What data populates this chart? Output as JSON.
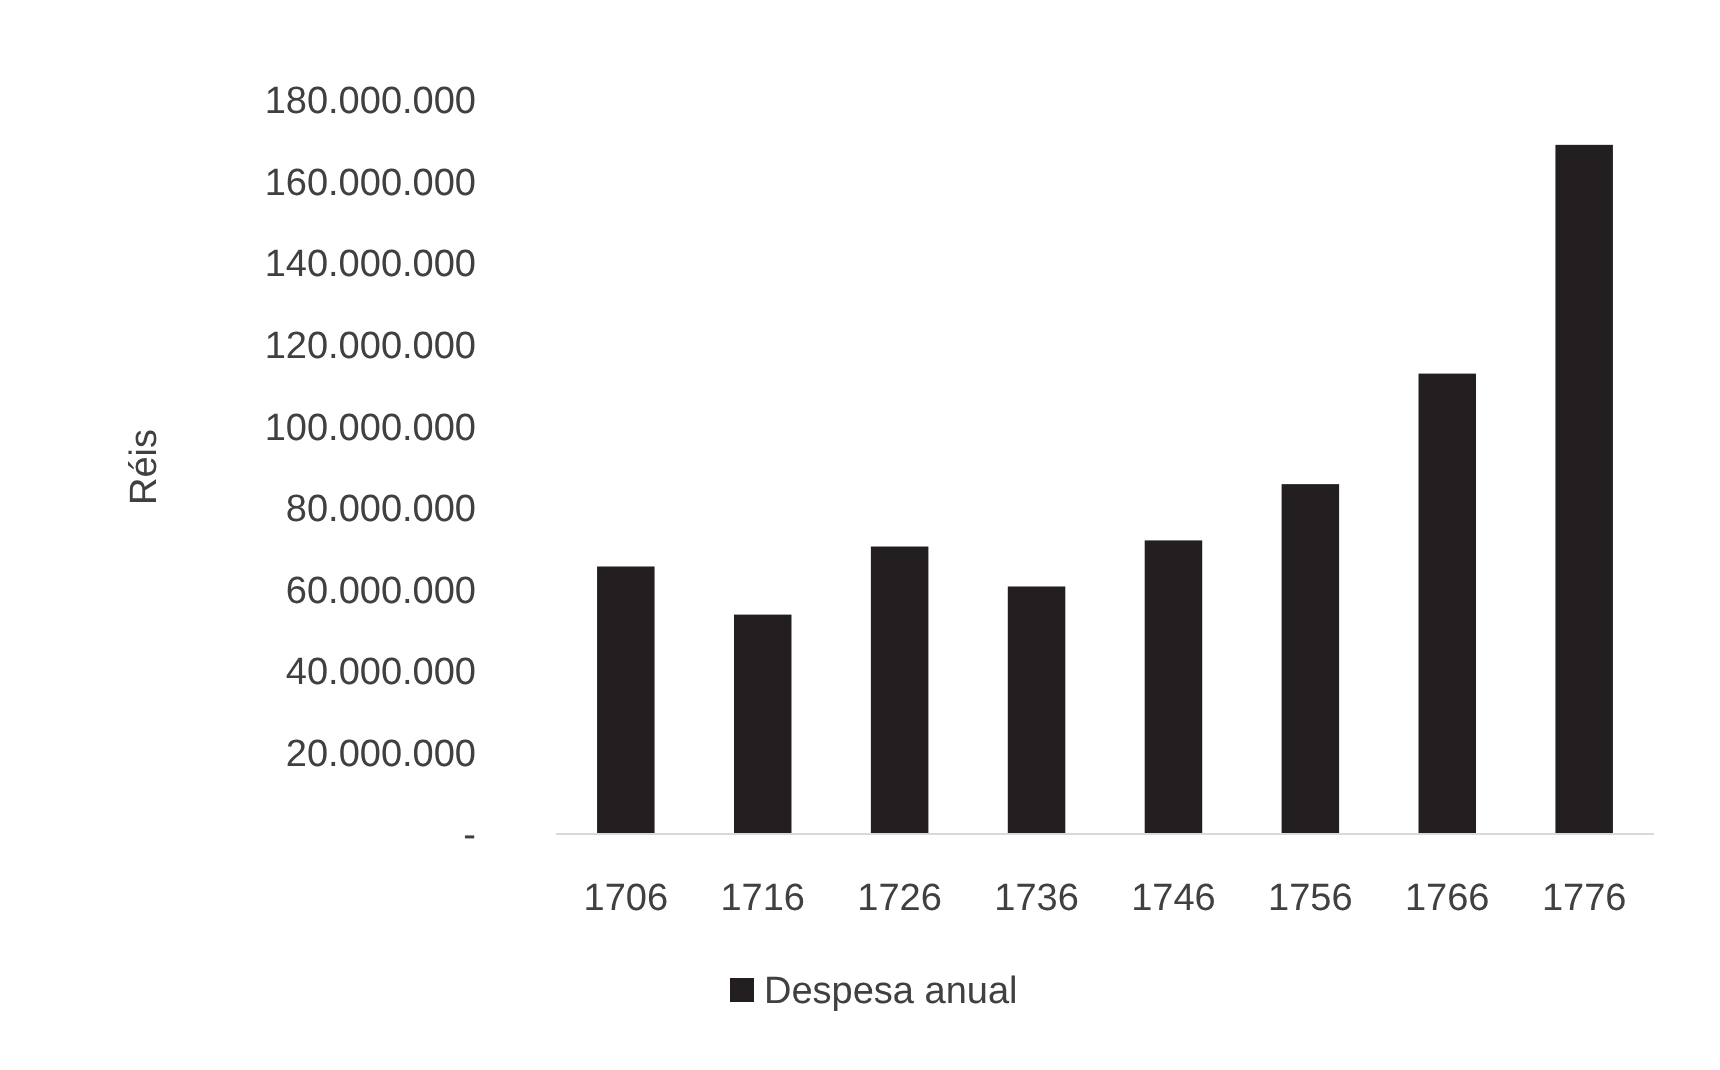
{
  "chart_data": {
    "type": "bar",
    "ylabel": "Réis",
    "categories": [
      "1706",
      "1716",
      "1726",
      "1736",
      "1746",
      "1756",
      "1766",
      "1776"
    ],
    "series": [
      {
        "name": "Despesa anual",
        "color": "#231f20",
        "values": [
          65600000,
          53800000,
          70500000,
          60700000,
          72000000,
          85800000,
          112900000,
          169000000
        ]
      }
    ],
    "ylim": [
      0,
      180000000
    ],
    "yticks": [
      {
        "value": 0,
        "label": "-"
      },
      {
        "value": 20000000,
        "label": "20.000.000"
      },
      {
        "value": 40000000,
        "label": "40.000.000"
      },
      {
        "value": 60000000,
        "label": "60.000.000"
      },
      {
        "value": 80000000,
        "label": "80.000.000"
      },
      {
        "value": 100000000,
        "label": "100.000.000"
      },
      {
        "value": 120000000,
        "label": "120.000.000"
      },
      {
        "value": 140000000,
        "label": "140.000.000"
      },
      {
        "value": 160000000,
        "label": "160.000.000"
      },
      {
        "value": 180000000,
        "label": "180.000.000"
      }
    ],
    "grid": false,
    "legend": "bottom"
  }
}
